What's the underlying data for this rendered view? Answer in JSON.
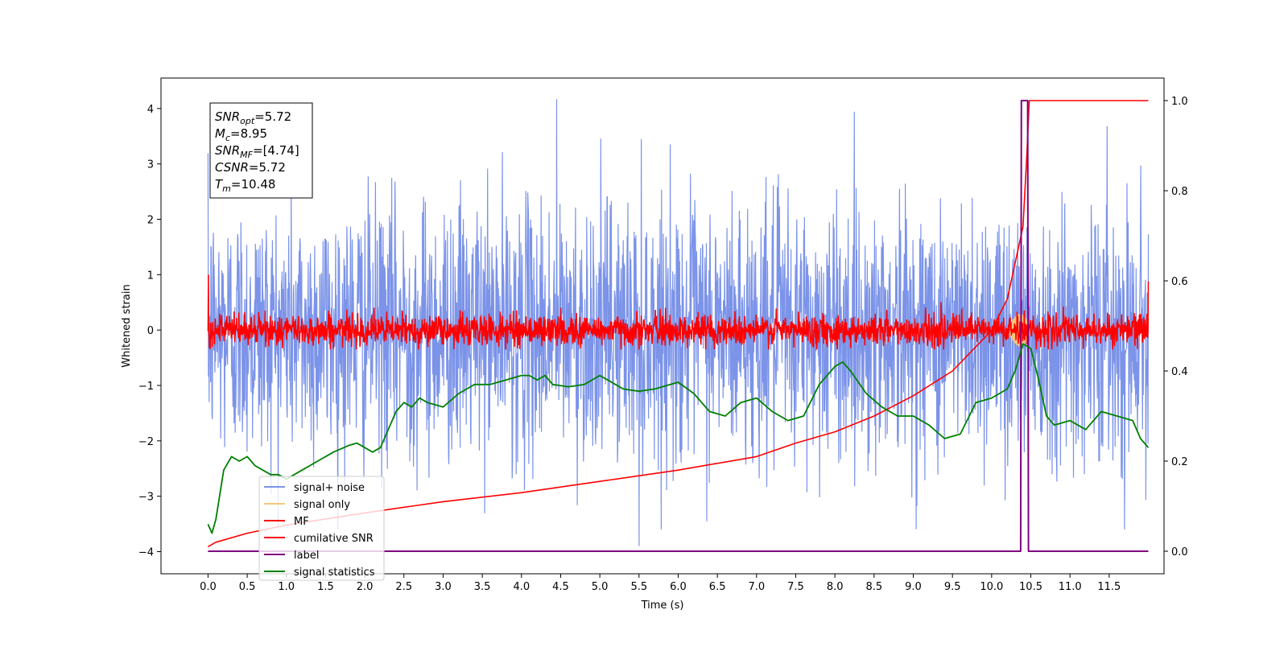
{
  "chart_data": {
    "type": "line",
    "xlabel": "Time (s)",
    "ylabel": "Whitened strain",
    "xlim": [
      -0.6,
      12.2
    ],
    "ylim": [
      -4.4,
      4.55
    ],
    "ylim_right": [
      -0.05,
      1.05
    ],
    "x_ticks": [
      0.0,
      0.5,
      1.0,
      1.5,
      2.0,
      2.5,
      3.0,
      3.5,
      4.0,
      4.5,
      5.0,
      5.5,
      6.0,
      6.5,
      7.0,
      7.5,
      8.0,
      8.5,
      9.0,
      9.5,
      10.0,
      10.5,
      11.0,
      11.5
    ],
    "x_tick_labels": [
      "0.0",
      "0.5",
      "1.0",
      "1.5",
      "2.0",
      "2.5",
      "3.0",
      "3.5",
      "4.0",
      "4.5",
      "5.0",
      "5.5",
      "6.0",
      "6.5",
      "7.0",
      "7.5",
      "8.0",
      "8.5",
      "9.0",
      "9.5",
      "10.0",
      "10.5",
      "11.0",
      "11.5"
    ],
    "y_ticks": [
      -4,
      -3,
      -2,
      -1,
      0,
      1,
      2,
      3,
      4
    ],
    "y_tick_labels": [
      "−4",
      "−3",
      "−2",
      "−1",
      "0",
      "1",
      "2",
      "3",
      "4"
    ],
    "y_ticks_right": [
      0.0,
      0.2,
      0.4,
      0.6,
      0.8,
      1.0
    ],
    "y_tick_labels_right": [
      "0.0",
      "0.2",
      "0.4",
      "0.6",
      "0.8",
      "1.0"
    ],
    "grid": false,
    "legend_position": "lower-left",
    "annotation": {
      "lines": [
        {
          "base": "SNR",
          "sub": "opt",
          "value": "=5.72"
        },
        {
          "base": "M",
          "sub": "c",
          "value": "=8.95"
        },
        {
          "base": "SNR",
          "sub": "MF",
          "value": "=[4.74]"
        },
        {
          "base": "CSNR",
          "sub": "",
          "value": "=5.72"
        },
        {
          "base": "T",
          "sub": "m",
          "value": "=10.48"
        }
      ]
    },
    "series": [
      {
        "name": "signal+ noise",
        "color": "#7b93e8",
        "axis": "left",
        "description_values": {
          "x_range": [
            0,
            12
          ],
          "band": [
            -2.5,
            2.5
          ],
          "max": 4.17,
          "min": -3.9
        }
      },
      {
        "name": "signal only",
        "color": "#f5c87a",
        "axis": "left",
        "description_values": {
          "burst_x": [
            10.2,
            10.5
          ],
          "amplitude": 0.3
        }
      },
      {
        "name": "MF",
        "color": "#ff0000",
        "axis": "left",
        "description_values": {
          "x_range": [
            0,
            12
          ],
          "band": [
            -0.3,
            0.3
          ],
          "peak": 1.0
        }
      },
      {
        "name": "cumilative SNR",
        "color": "#ff0000",
        "axis": "right",
        "x": [
          0.0,
          0.1,
          0.5,
          1.0,
          2.0,
          3.0,
          4.0,
          5.0,
          6.0,
          7.0,
          7.5,
          8.0,
          8.5,
          9.0,
          9.5,
          10.0,
          10.2,
          10.4,
          10.45,
          10.48,
          11.5,
          12.0
        ],
        "y": [
          0.01,
          0.02,
          0.04,
          0.058,
          0.085,
          0.11,
          0.13,
          0.155,
          0.18,
          0.21,
          0.24,
          0.265,
          0.3,
          0.345,
          0.4,
          0.49,
          0.56,
          0.72,
          0.88,
          1.0,
          1.0,
          1.0
        ]
      },
      {
        "name": "label",
        "color": "#800080",
        "axis": "right",
        "x": [
          0.0,
          10.37,
          10.38,
          10.46,
          10.47,
          12.0
        ],
        "y": [
          0.0,
          0.0,
          1.0,
          1.0,
          0.0,
          0.0
        ]
      },
      {
        "name": "signal statistics",
        "color": "#008000",
        "axis": "right",
        "x": [
          0.0,
          0.05,
          0.1,
          0.2,
          0.3,
          0.4,
          0.5,
          0.6,
          0.7,
          0.8,
          0.9,
          1.0,
          1.2,
          1.4,
          1.6,
          1.8,
          1.9,
          2.0,
          2.1,
          2.2,
          2.3,
          2.4,
          2.5,
          2.6,
          2.7,
          2.8,
          3.0,
          3.2,
          3.4,
          3.6,
          3.8,
          4.0,
          4.1,
          4.2,
          4.3,
          4.4,
          4.6,
          4.8,
          5.0,
          5.1,
          5.3,
          5.5,
          5.7,
          5.9,
          6.0,
          6.2,
          6.4,
          6.6,
          6.8,
          7.0,
          7.2,
          7.4,
          7.6,
          7.8,
          8.0,
          8.1,
          8.2,
          8.4,
          8.6,
          8.8,
          9.0,
          9.2,
          9.4,
          9.6,
          9.8,
          10.0,
          10.2,
          10.3,
          10.4,
          10.5,
          10.6,
          10.7,
          10.8,
          11.0,
          11.2,
          11.4,
          11.6,
          11.8,
          11.9,
          12.0
        ],
        "y": [
          0.06,
          0.04,
          0.07,
          0.18,
          0.21,
          0.2,
          0.21,
          0.19,
          0.18,
          0.17,
          0.17,
          0.16,
          0.18,
          0.2,
          0.22,
          0.235,
          0.24,
          0.23,
          0.22,
          0.23,
          0.27,
          0.31,
          0.33,
          0.32,
          0.34,
          0.33,
          0.32,
          0.35,
          0.37,
          0.37,
          0.38,
          0.39,
          0.39,
          0.38,
          0.39,
          0.37,
          0.365,
          0.37,
          0.39,
          0.38,
          0.36,
          0.355,
          0.36,
          0.37,
          0.375,
          0.35,
          0.31,
          0.3,
          0.33,
          0.34,
          0.31,
          0.29,
          0.3,
          0.37,
          0.41,
          0.42,
          0.4,
          0.35,
          0.32,
          0.3,
          0.3,
          0.28,
          0.25,
          0.26,
          0.33,
          0.34,
          0.36,
          0.4,
          0.46,
          0.45,
          0.38,
          0.3,
          0.28,
          0.29,
          0.27,
          0.31,
          0.3,
          0.29,
          0.25,
          0.23
        ]
      }
    ]
  }
}
